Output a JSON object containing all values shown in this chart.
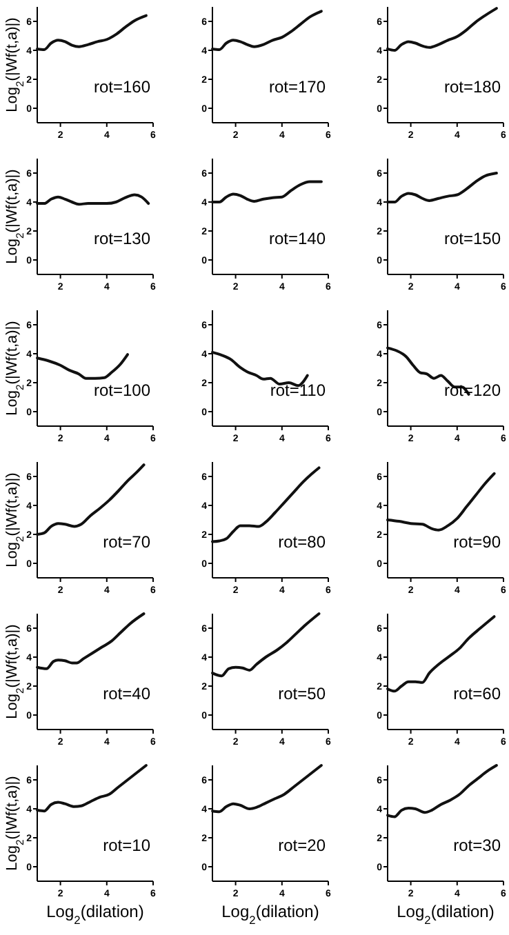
{
  "chart_data": [
    {
      "type": "line",
      "ylabel": "Log$_{2}$(|Wf(t,a)|)",
      "annotations": [
        "rot=160"
      ],
      "color": "#111111",
      "xlim": [
        1,
        6
      ],
      "ylim": [
        -1,
        7
      ],
      "xticks": [
        2,
        4,
        6
      ],
      "yticks": [
        0,
        2,
        4,
        6
      ],
      "x": [
        1,
        1.3,
        1.6,
        1.9,
        2.2,
        2.5,
        2.8,
        3.2,
        3.6,
        4,
        4.4,
        4.8,
        5.2,
        5.7
      ],
      "values": [
        4.1,
        4.05,
        4.5,
        4.7,
        4.6,
        4.35,
        4.25,
        4.4,
        4.6,
        4.75,
        5.1,
        5.6,
        6.05,
        6.4
      ]
    },
    {
      "type": "line",
      "annotations": [
        "rot=170"
      ],
      "color": "#111111",
      "xlim": [
        1,
        6
      ],
      "ylim": [
        -1,
        7
      ],
      "xticks": [
        2,
        4,
        6
      ],
      "yticks": [
        0,
        2,
        4,
        6
      ],
      "x": [
        1,
        1.3,
        1.6,
        1.9,
        2.2,
        2.5,
        2.8,
        3.2,
        3.6,
        4,
        4.4,
        4.8,
        5.2,
        5.7
      ],
      "values": [
        4.1,
        4.05,
        4.5,
        4.7,
        4.6,
        4.4,
        4.25,
        4.4,
        4.7,
        4.9,
        5.3,
        5.8,
        6.3,
        6.7
      ]
    },
    {
      "type": "line",
      "annotations": [
        "rot=180"
      ],
      "color": "#111111",
      "xlim": [
        1,
        6
      ],
      "ylim": [
        -1,
        7
      ],
      "xticks": [
        2,
        4,
        6
      ],
      "yticks": [
        0,
        2,
        4,
        6
      ],
      "x": [
        1,
        1.3,
        1.6,
        1.9,
        2.2,
        2.5,
        2.8,
        3.2,
        3.6,
        4,
        4.4,
        4.8,
        5.2,
        5.7
      ],
      "values": [
        4.1,
        4.0,
        4.4,
        4.6,
        4.5,
        4.3,
        4.2,
        4.4,
        4.7,
        4.95,
        5.4,
        5.95,
        6.4,
        6.9
      ]
    },
    {
      "type": "line",
      "ylabel": "Log$_{2}$(|Wf(t,a)|)",
      "annotations": [
        "rot=130"
      ],
      "color": "#111111",
      "xlim": [
        1,
        6
      ],
      "ylim": [
        -1,
        7
      ],
      "xticks": [
        2,
        4,
        6
      ],
      "yticks": [
        0,
        2,
        4,
        6
      ],
      "x": [
        1,
        1.3,
        1.6,
        1.9,
        2.2,
        2.5,
        2.8,
        3.2,
        3.6,
        4,
        4.4,
        4.8,
        5.2,
        5.5,
        5.8
      ],
      "values": [
        3.9,
        3.9,
        4.2,
        4.35,
        4.2,
        4.0,
        3.85,
        3.9,
        3.9,
        3.9,
        4.0,
        4.3,
        4.5,
        4.35,
        3.9
      ]
    },
    {
      "type": "line",
      "annotations": [
        "rot=140"
      ],
      "color": "#111111",
      "xlim": [
        1,
        6
      ],
      "ylim": [
        -1,
        7
      ],
      "xticks": [
        2,
        4,
        6
      ],
      "yticks": [
        0,
        2,
        4,
        6
      ],
      "x": [
        1,
        1.3,
        1.6,
        1.9,
        2.2,
        2.5,
        2.8,
        3.2,
        3.6,
        4,
        4.4,
        4.8,
        5.2,
        5.7
      ],
      "values": [
        4,
        4.0,
        4.35,
        4.55,
        4.45,
        4.2,
        4.05,
        4.2,
        4.3,
        4.35,
        4.8,
        5.2,
        5.4,
        5.4
      ]
    },
    {
      "type": "line",
      "annotations": [
        "rot=150"
      ],
      "color": "#111111",
      "xlim": [
        1,
        6
      ],
      "ylim": [
        -1,
        7
      ],
      "xticks": [
        2,
        4,
        6
      ],
      "yticks": [
        0,
        2,
        4,
        6
      ],
      "x": [
        1,
        1.3,
        1.6,
        1.9,
        2.2,
        2.5,
        2.8,
        3.2,
        3.6,
        4,
        4.4,
        4.8,
        5.2,
        5.7
      ],
      "values": [
        4,
        4.0,
        4.4,
        4.6,
        4.5,
        4.25,
        4.1,
        4.25,
        4.4,
        4.5,
        4.9,
        5.4,
        5.8,
        6.0
      ]
    },
    {
      "type": "line",
      "ylabel": "Log$_{2}$(|Wf(t,a)|)",
      "annotations": [
        "rot=100"
      ],
      "color": "#111111",
      "xlim": [
        1,
        6
      ],
      "ylim": [
        -1,
        7
      ],
      "xticks": [
        2,
        4,
        6
      ],
      "yticks": [
        0,
        2,
        4,
        6
      ],
      "x": [
        1,
        1.5,
        2,
        2.4,
        2.8,
        3.1,
        3.5,
        3.9,
        4.2,
        4.6,
        4.9
      ],
      "values": [
        3.7,
        3.5,
        3.2,
        2.85,
        2.6,
        2.3,
        2.3,
        2.35,
        2.7,
        3.3,
        3.95
      ]
    },
    {
      "type": "line",
      "annotations": [
        "rot=110"
      ],
      "color": "#111111",
      "xlim": [
        1,
        6
      ],
      "ylim": [
        -1,
        7
      ],
      "xticks": [
        2,
        4,
        6
      ],
      "yticks": [
        0,
        2,
        4,
        6
      ],
      "x": [
        1,
        1.4,
        1.8,
        2.2,
        2.5,
        2.9,
        3.2,
        3.5,
        3.9,
        4.3,
        4.7,
        5.1
      ],
      "values": [
        4.1,
        3.9,
        3.6,
        3.05,
        2.75,
        2.5,
        2.25,
        2.3,
        1.9,
        2.0,
        1.8,
        2.5
      ]
    },
    {
      "type": "line",
      "annotations": [
        "rot=120"
      ],
      "color": "#111111",
      "xlim": [
        1,
        6
      ],
      "ylim": [
        -1,
        7
      ],
      "xticks": [
        2,
        4,
        6
      ],
      "yticks": [
        0,
        2,
        4,
        6
      ],
      "x": [
        1,
        1.4,
        1.8,
        2.1,
        2.4,
        2.7,
        3.0,
        3.3,
        3.6,
        3.9,
        4.2,
        4.5
      ],
      "values": [
        4.4,
        4.2,
        3.8,
        3.2,
        2.7,
        2.6,
        2.3,
        2.5,
        2.1,
        1.7,
        1.7,
        1.2
      ]
    },
    {
      "type": "line",
      "ylabel": "Log$_{2}$(|Wf(t,a)|)",
      "annotations": [
        "rot=70"
      ],
      "color": "#111111",
      "xlim": [
        1,
        6
      ],
      "ylim": [
        -1,
        7
      ],
      "xticks": [
        2,
        4,
        6
      ],
      "yticks": [
        0,
        2,
        4,
        6
      ],
      "x": [
        1,
        1.3,
        1.6,
        1.9,
        2.2,
        2.6,
        2.9,
        3.3,
        3.7,
        4.1,
        4.5,
        4.9,
        5.3,
        5.6
      ],
      "values": [
        2.0,
        2.1,
        2.55,
        2.75,
        2.7,
        2.55,
        2.7,
        3.3,
        3.8,
        4.35,
        5.0,
        5.7,
        6.3,
        6.8
      ]
    },
    {
      "type": "line",
      "annotations": [
        "rot=80"
      ],
      "color": "#111111",
      "xlim": [
        1,
        6
      ],
      "ylim": [
        -1,
        7
      ],
      "xticks": [
        2,
        4,
        6
      ],
      "yticks": [
        0,
        2,
        4,
        6
      ],
      "x": [
        1,
        1.3,
        1.6,
        1.9,
        2.2,
        2.6,
        3.0,
        3.3,
        3.7,
        4.1,
        4.5,
        4.9,
        5.3,
        5.6
      ],
      "values": [
        1.5,
        1.55,
        1.7,
        2.2,
        2.6,
        2.6,
        2.55,
        2.85,
        3.5,
        4.2,
        4.9,
        5.6,
        6.2,
        6.6
      ]
    },
    {
      "type": "line",
      "annotations": [
        "rot=90"
      ],
      "color": "#111111",
      "xlim": [
        1,
        6
      ],
      "ylim": [
        -1,
        7
      ],
      "xticks": [
        2,
        4,
        6
      ],
      "yticks": [
        0,
        2,
        4,
        6
      ],
      "x": [
        1,
        1.5,
        2,
        2.5,
        2.9,
        3.2,
        3.6,
        4,
        4.4,
        4.8,
        5.2,
        5.6
      ],
      "values": [
        3.0,
        2.9,
        2.75,
        2.7,
        2.4,
        2.3,
        2.6,
        3.1,
        3.9,
        4.7,
        5.5,
        6.2
      ]
    },
    {
      "type": "line",
      "ylabel": "Log$_{2}$(|Wf(t,a)|)",
      "annotations": [
        "rot=40"
      ],
      "color": "#111111",
      "xlim": [
        1,
        6
      ],
      "ylim": [
        -1,
        7
      ],
      "xticks": [
        2,
        4,
        6
      ],
      "yticks": [
        0,
        2,
        4,
        6
      ],
      "x": [
        1,
        1.4,
        1.7,
        1.9,
        2.2,
        2.5,
        2.7,
        3,
        3.4,
        3.8,
        4.2,
        4.6,
        5,
        5.6
      ],
      "values": [
        3.3,
        3.2,
        3.7,
        3.8,
        3.75,
        3.6,
        3.6,
        3.9,
        4.3,
        4.7,
        5.1,
        5.7,
        6.3,
        7.0
      ]
    },
    {
      "type": "line",
      "annotations": [
        "rot=50"
      ],
      "color": "#111111",
      "xlim": [
        1,
        6
      ],
      "ylim": [
        -1,
        7
      ],
      "xticks": [
        2,
        4,
        6
      ],
      "yticks": [
        0,
        2,
        4,
        6
      ],
      "x": [
        1,
        1.4,
        1.7,
        2,
        2.3,
        2.6,
        2.9,
        3.3,
        3.8,
        4.2,
        4.6,
        5,
        5.6
      ],
      "values": [
        2.9,
        2.7,
        3.2,
        3.3,
        3.25,
        3.1,
        3.5,
        4.0,
        4.5,
        5.0,
        5.6,
        6.2,
        7.0
      ]
    },
    {
      "type": "line",
      "annotations": [
        "rot=60"
      ],
      "color": "#111111",
      "xlim": [
        1,
        6
      ],
      "ylim": [
        -1,
        7
      ],
      "xticks": [
        2,
        4,
        6
      ],
      "yticks": [
        0,
        2,
        4,
        6
      ],
      "x": [
        1,
        1.3,
        1.6,
        1.9,
        2.2,
        2.5,
        2.8,
        3.2,
        3.7,
        4.1,
        4.5,
        5,
        5.6
      ],
      "values": [
        1.8,
        1.65,
        2.0,
        2.3,
        2.3,
        2.25,
        2.9,
        3.5,
        4.1,
        4.6,
        5.3,
        6.0,
        6.8
      ]
    },
    {
      "type": "line",
      "ylabel": "Log$_{2}$(|Wf(t,a)|)",
      "xlabel": "Log$_{2}$(dilation)",
      "annotations": [
        "rot=10"
      ],
      "color": "#111111",
      "xlim": [
        1,
        6
      ],
      "ylim": [
        -1,
        7
      ],
      "xticks": [
        2,
        4,
        6
      ],
      "yticks": [
        0,
        2,
        4,
        6
      ],
      "x": [
        1,
        1.3,
        1.6,
        1.9,
        2.2,
        2.6,
        2.9,
        3.3,
        3.7,
        4.1,
        4.5,
        4.9,
        5.3,
        5.7
      ],
      "values": [
        3.9,
        3.85,
        4.3,
        4.45,
        4.35,
        4.15,
        4.2,
        4.5,
        4.8,
        5.0,
        5.5,
        6.0,
        6.5,
        7.0
      ]
    },
    {
      "type": "line",
      "xlabel": "Log$_{2}$(dilation)",
      "annotations": [
        "rot=20"
      ],
      "color": "#111111",
      "xlim": [
        1,
        6
      ],
      "ylim": [
        -1,
        7
      ],
      "xticks": [
        2,
        4,
        6
      ],
      "yticks": [
        0,
        2,
        4,
        6
      ],
      "x": [
        1,
        1.3,
        1.6,
        1.9,
        2.2,
        2.6,
        2.9,
        3.3,
        3.7,
        4.1,
        4.5,
        4.9,
        5.3,
        5.7
      ],
      "values": [
        3.85,
        3.8,
        4.15,
        4.35,
        4.25,
        4.0,
        4.1,
        4.4,
        4.7,
        5.0,
        5.5,
        6.0,
        6.5,
        7.0
      ]
    },
    {
      "type": "line",
      "xlabel": "Log$_{2}$(dilation)",
      "annotations": [
        "rot=30"
      ],
      "color": "#111111",
      "xlim": [
        1,
        6
      ],
      "ylim": [
        -1,
        7
      ],
      "xticks": [
        2,
        4,
        6
      ],
      "yticks": [
        0,
        2,
        4,
        6
      ],
      "x": [
        1,
        1.3,
        1.6,
        1.9,
        2.2,
        2.6,
        2.9,
        3.3,
        3.7,
        4.1,
        4.5,
        4.9,
        5.3,
        5.7
      ],
      "values": [
        3.55,
        3.45,
        3.9,
        4.05,
        4.0,
        3.75,
        3.9,
        4.3,
        4.6,
        5.0,
        5.6,
        6.1,
        6.6,
        7.0
      ]
    }
  ]
}
